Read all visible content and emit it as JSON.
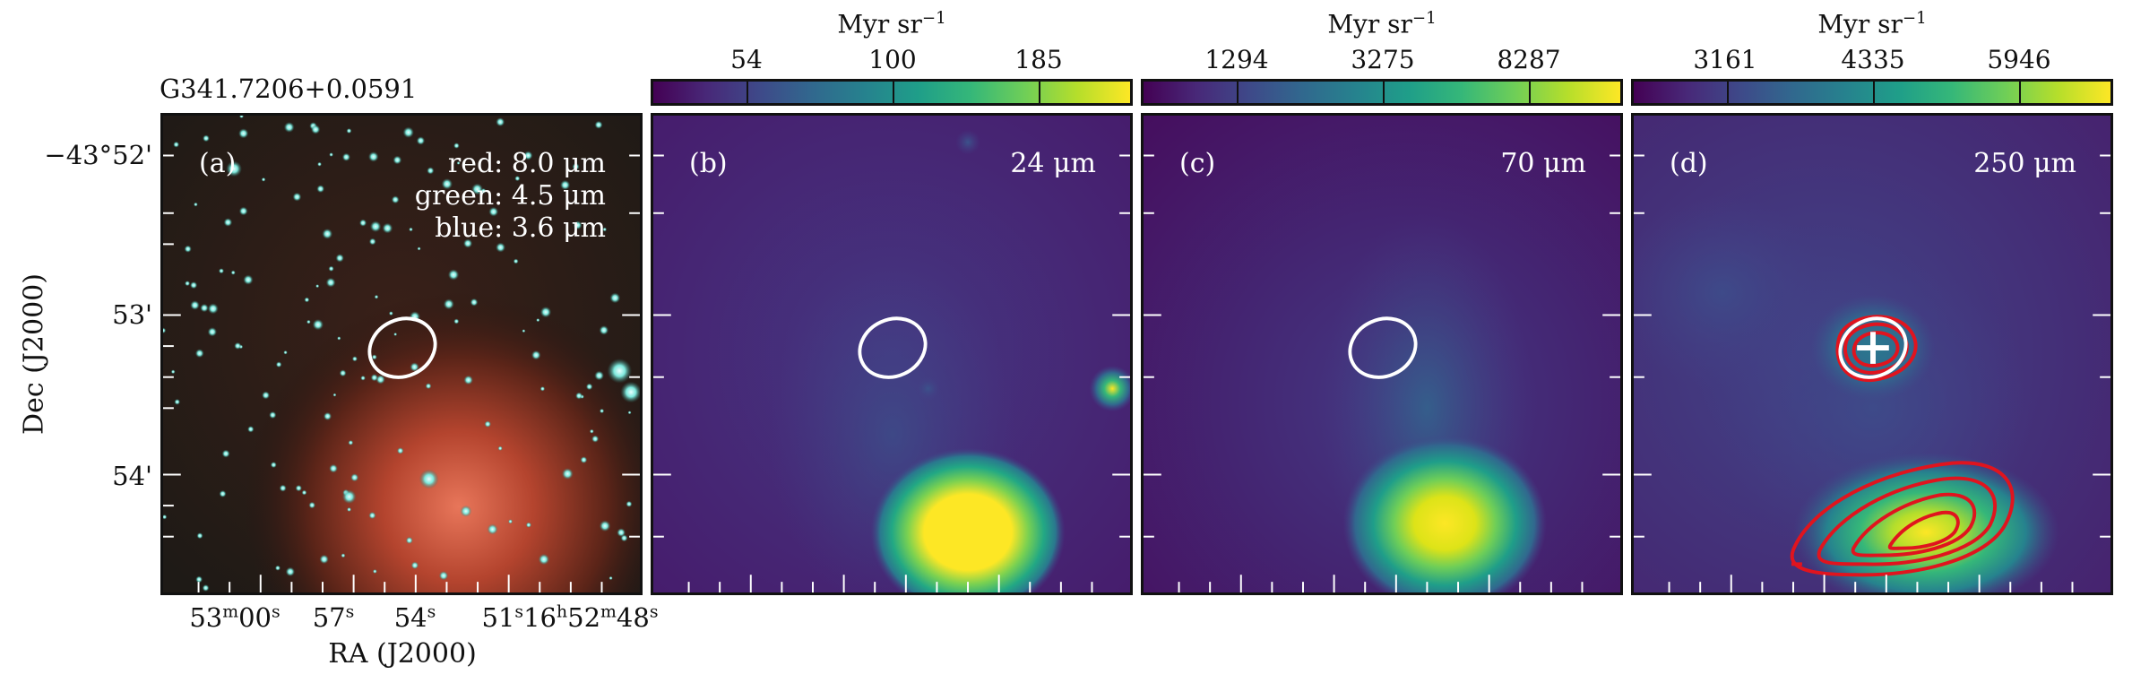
{
  "figure": {
    "object_name": "G341.7206+0.0591",
    "xaxis_title": "RA (J2000)",
    "yaxis_title": "Dec (J2000)",
    "ra_ticks": [
      {
        "m": "53",
        "s": "00"
      },
      {
        "m": "",
        "s": "57"
      },
      {
        "m": "",
        "s": "54"
      },
      {
        "h": "16",
        "d": "51",
        "m": "52",
        "s": "48"
      }
    ],
    "dec_ticks": [
      "−43°52'",
      "53'",
      "54'"
    ]
  },
  "panels": [
    {
      "id": "a",
      "label": "(a)",
      "legend": [
        "red: 8.0 μm",
        "green: 4.5 μm",
        "blue: 3.6 μm"
      ]
    },
    {
      "id": "b",
      "label": "(b)",
      "wavelength": "24 μm",
      "colorbar": {
        "unit": "Myr sr",
        "unit_exp": "−1",
        "ticks": [
          "54",
          "100",
          "185"
        ]
      }
    },
    {
      "id": "c",
      "label": "(c)",
      "wavelength": "70 μm",
      "colorbar": {
        "unit": "Myr sr",
        "unit_exp": "−1",
        "ticks": [
          "1294",
          "3275",
          "8287"
        ]
      }
    },
    {
      "id": "d",
      "label": "(d)",
      "wavelength": "250 μm",
      "colorbar": {
        "unit": "Myr sr",
        "unit_exp": "−1",
        "ticks": [
          "3161",
          "4335",
          "5946"
        ]
      }
    }
  ],
  "colors": {
    "viridis_low": "#440154",
    "viridis_high": "#fde725",
    "ellipse": "#ffffff",
    "contour": "#e0141e",
    "marker": "#ffffff"
  }
}
